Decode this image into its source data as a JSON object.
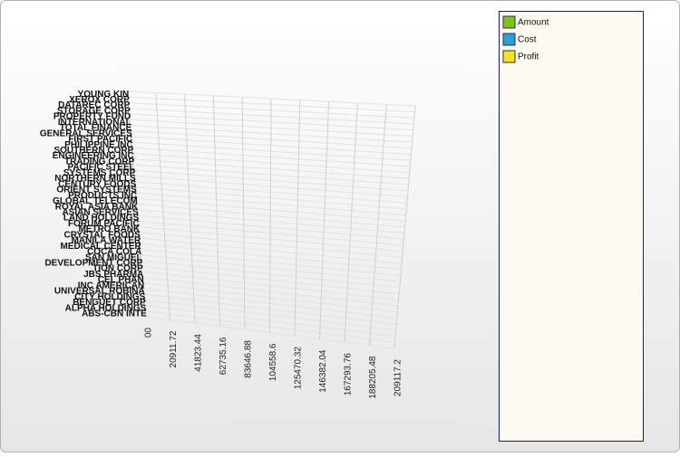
{
  "chart_data": {
    "type": "bar3d_horizontal",
    "categories": [
      "YOUNG KIN",
      "XEROX CORP",
      "DATAREC CORP",
      "STORAGE CORP",
      "PROPERTY FUND",
      "INTERNATIONAL",
      "TOTAL FINANCE",
      "GENERAL SERVICES",
      "FIRST PACIFIC",
      "PHILIPPINE INC",
      "SOUTHERN CORP",
      "ENGINEERING INC",
      "TRADING CORP",
      "PACIFIC STEEL",
      "SYSTEMS CORP",
      "NORTHERN MILLS",
      "CENTURY FOODS",
      "ORIENT SYSTEMS",
      "PRODUCTS INC",
      "GLOBAL TELECOM",
      "ROYAL ASIA BANK",
      "ASIAN SERVICES",
      "LAND HOLDINGS",
      "FORUM PACIFIC",
      "METRO BANK",
      "CRYSTAL FOODS",
      "MANILA WATER",
      "MEDICAL CENTER",
      "COCA COLA",
      "SAN MIGUEL",
      "DEVELOPMENT CORP",
      "TION CORP",
      "JBS PHARMA",
      "CEL PHAN",
      "INC AMERICAN",
      "UNIVERSAL ROBINA",
      "CITY HOLDINGS",
      "BENGUET CORP",
      "ALPHA HOLDINGS",
      "ABS-CBN INTE"
    ],
    "series": [
      {
        "name": "Amount",
        "color": "#7dc21e",
        "values": [
          0,
          0,
          0,
          0,
          0,
          0,
          0,
          0,
          0,
          0,
          0,
          0,
          0,
          0,
          0,
          0,
          0,
          0,
          0,
          0,
          0,
          0,
          0,
          0,
          0,
          0,
          0,
          0,
          0,
          0,
          0,
          0,
          0,
          0,
          0,
          0,
          0,
          0,
          0,
          0
        ]
      },
      {
        "name": "Cost",
        "color": "#2a9fe0",
        "values": [
          0,
          0,
          0,
          0,
          0,
          0,
          0,
          0,
          0,
          0,
          0,
          0,
          0,
          0,
          0,
          0,
          0,
          0,
          0,
          0,
          0,
          0,
          0,
          0,
          0,
          0,
          0,
          0,
          0,
          0,
          0,
          0,
          0,
          0,
          0,
          0,
          0,
          0,
          0,
          0
        ]
      },
      {
        "name": "Profit",
        "color": "#f5e22a",
        "values": [
          0,
          0,
          0,
          0,
          0,
          0,
          0,
          0,
          0,
          0,
          0,
          0,
          0,
          0,
          0,
          0,
          0,
          0,
          0,
          0,
          0,
          0,
          0,
          0,
          0,
          0,
          0,
          0,
          0,
          0,
          0,
          0,
          0,
          0,
          0,
          0,
          0,
          0,
          0,
          0
        ]
      }
    ],
    "xlim": [
      0,
      209117.2
    ],
    "xticks": [
      {
        "value": 0,
        "label": "00"
      },
      20911.72,
      41823.44,
      62735.16,
      83646.88,
      104558.6,
      125470.32,
      146382.04,
      167293.76,
      188205.48,
      209117.2
    ],
    "grid": true,
    "legend": "right"
  }
}
